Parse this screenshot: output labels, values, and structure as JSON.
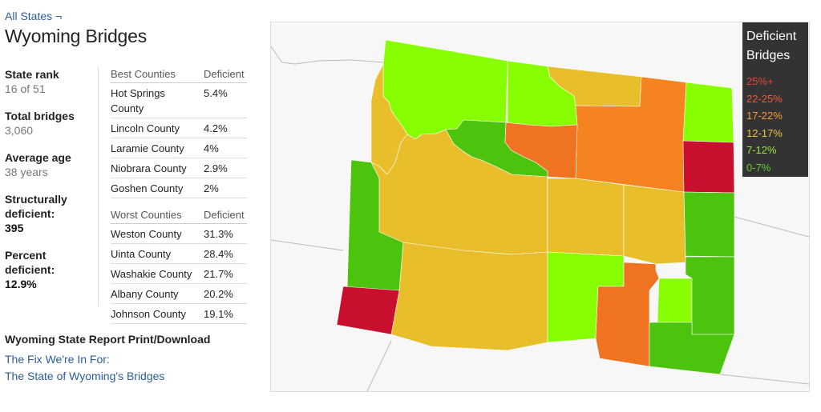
{
  "breadcrumb": "All States ¬",
  "title": "Wyoming Bridges",
  "stats": [
    {
      "label": "State rank",
      "value": "16 of 51"
    },
    {
      "label": "Total bridges",
      "value": "3,060"
    },
    {
      "label": "Average age",
      "value": "38 years"
    },
    {
      "label": "Structurally deficient:",
      "value": "395"
    },
    {
      "label": "Percent deficient:",
      "value": "12.9%"
    }
  ],
  "best": {
    "header_name": "Best Counties",
    "header_value": "Deficient",
    "rows": [
      {
        "name": "Hot Springs County",
        "value": "5.4%"
      },
      {
        "name": "Lincoln County",
        "value": "4.2%"
      },
      {
        "name": "Laramie County",
        "value": "4%"
      },
      {
        "name": "Niobrara County",
        "value": "2.9%"
      },
      {
        "name": "Goshen County",
        "value": "2%"
      }
    ]
  },
  "worst": {
    "header_name": "Worst Counties",
    "header_value": "Deficient",
    "rows": [
      {
        "name": "Weston County",
        "value": "31.3%"
      },
      {
        "name": "Uinta County",
        "value": "28.4%"
      },
      {
        "name": "Washakie County",
        "value": "21.7%"
      },
      {
        "name": "Albany County",
        "value": "20.2%"
      },
      {
        "name": "Johnson County",
        "value": "19.1%"
      }
    ]
  },
  "report": {
    "title": "Wyoming State Report Print/Download",
    "link1": "The Fix We're In For:",
    "link2": "The State of Wyoming's Bridges"
  },
  "legend": {
    "title": "Deficient Bridges",
    "items": [
      {
        "label": "25%+",
        "color": "#e8453a"
      },
      {
        "label": "22-25%",
        "color": "#ee5a3a"
      },
      {
        "label": "17-22%",
        "color": "#f59a3a"
      },
      {
        "label": "12-17%",
        "color": "#f2c540"
      },
      {
        "label": "7-12%",
        "color": "#9be83a"
      },
      {
        "label": "0-7%",
        "color": "#66cc33"
      }
    ]
  },
  "map_colors": {
    "c25": "#c8102e",
    "c22": "#f07322",
    "c17": "#f5831f",
    "c12": "#e8be2a",
    "c7": "#88ff00",
    "c0": "#4cc40e"
  }
}
